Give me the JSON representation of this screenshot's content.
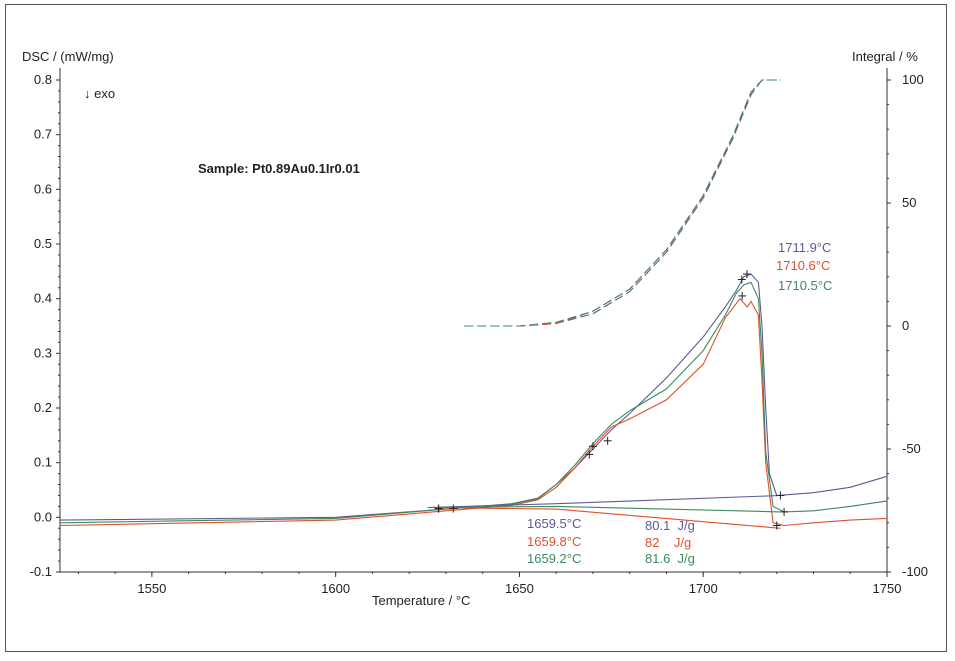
{
  "chart_data": {
    "type": "line",
    "y_axis_left": {
      "label": "DSC / (mW/mg)",
      "range": [
        -0.1,
        0.8
      ],
      "ticks": [
        "-0.1",
        "0.0",
        "0.1",
        "0.2",
        "0.3",
        "0.4",
        "0.5",
        "0.6",
        "0.7",
        "0.8"
      ]
    },
    "y_axis_right": {
      "label": "Integral / %",
      "range": [
        -100,
        100
      ],
      "ticks": [
        "-100",
        "-50",
        "0",
        "50",
        "100"
      ]
    },
    "x_axis": {
      "label": "Temperature / °C",
      "range": [
        1525,
        1750
      ],
      "ticks": [
        "1550",
        "1600",
        "1650",
        "1700",
        "1750"
      ]
    },
    "exo_label": "↓ exo",
    "sample_label": "Sample: Pt0.89Au0.1Ir0.01",
    "colors": {
      "blue": "#5a5a96",
      "red": "#e0502a",
      "green": "#3d8a5e"
    },
    "peak_labels": [
      {
        "text": "1711.9°C",
        "color": "blue"
      },
      {
        "text": "1710.6°C",
        "color": "red"
      },
      {
        "text": "1710.5°C",
        "color": "green"
      }
    ],
    "onset_labels": [
      {
        "text": "1659.5°C",
        "color": "blue"
      },
      {
        "text": "1659.8°C",
        "color": "red"
      },
      {
        "text": "1659.2°C",
        "color": "green"
      }
    ],
    "enthalpy_labels": [
      {
        "text": "80.1  J/g",
        "color": "blue"
      },
      {
        "text": "82    J/g",
        "color": "red"
      },
      {
        "text": "81.6  J/g",
        "color": "green"
      }
    ],
    "series": [
      {
        "color": "blue",
        "axis": "left",
        "style": "solid",
        "points": [
          [
            1525,
            -0.005
          ],
          [
            1600,
            0.0
          ],
          [
            1630,
            0.015
          ],
          [
            1648,
            0.025
          ],
          [
            1655,
            0.035
          ],
          [
            1660,
            0.06
          ],
          [
            1665,
            0.09
          ],
          [
            1670,
            0.125
          ],
          [
            1675,
            0.16
          ],
          [
            1680,
            0.19
          ],
          [
            1690,
            0.255
          ],
          [
            1700,
            0.33
          ],
          [
            1706,
            0.385
          ],
          [
            1709,
            0.415
          ],
          [
            1711,
            0.44
          ],
          [
            1713,
            0.445
          ],
          [
            1715,
            0.43
          ],
          [
            1716,
            0.35
          ],
          [
            1717,
            0.2
          ],
          [
            1718,
            0.08
          ],
          [
            1720,
            0.04
          ],
          [
            1730,
            0.045
          ],
          [
            1740,
            0.055
          ],
          [
            1750,
            0.075
          ]
        ]
      },
      {
        "color": "red",
        "axis": "left",
        "style": "solid",
        "points": [
          [
            1525,
            -0.015
          ],
          [
            1600,
            -0.005
          ],
          [
            1630,
            0.012
          ],
          [
            1648,
            0.022
          ],
          [
            1655,
            0.032
          ],
          [
            1660,
            0.055
          ],
          [
            1665,
            0.09
          ],
          [
            1670,
            0.13
          ],
          [
            1675,
            0.165
          ],
          [
            1680,
            0.18
          ],
          [
            1690,
            0.215
          ],
          [
            1700,
            0.28
          ],
          [
            1706,
            0.365
          ],
          [
            1710,
            0.4
          ],
          [
            1712,
            0.385
          ],
          [
            1713,
            0.395
          ],
          [
            1715,
            0.37
          ],
          [
            1716,
            0.25
          ],
          [
            1717,
            0.1
          ],
          [
            1719,
            -0.01
          ],
          [
            1722,
            -0.015
          ],
          [
            1730,
            -0.01
          ],
          [
            1740,
            -0.005
          ],
          [
            1750,
            -0.002
          ]
        ]
      },
      {
        "color": "green",
        "axis": "left",
        "style": "solid",
        "points": [
          [
            1525,
            -0.01
          ],
          [
            1600,
            -0.002
          ],
          [
            1630,
            0.015
          ],
          [
            1648,
            0.024
          ],
          [
            1655,
            0.034
          ],
          [
            1660,
            0.06
          ],
          [
            1665,
            0.095
          ],
          [
            1670,
            0.135
          ],
          [
            1675,
            0.17
          ],
          [
            1680,
            0.195
          ],
          [
            1690,
            0.235
          ],
          [
            1700,
            0.305
          ],
          [
            1706,
            0.37
          ],
          [
            1709,
            0.41
          ],
          [
            1711,
            0.425
          ],
          [
            1713,
            0.43
          ],
          [
            1715,
            0.4
          ],
          [
            1716,
            0.3
          ],
          [
            1717,
            0.12
          ],
          [
            1719,
            0.02
          ],
          [
            1722,
            0.01
          ],
          [
            1730,
            0.012
          ],
          [
            1740,
            0.02
          ],
          [
            1750,
            0.03
          ]
        ]
      },
      {
        "color": "blue",
        "axis": "left",
        "style": "solid",
        "points": [
          [
            1625,
            0.018
          ],
          [
            1660,
            0.025
          ],
          [
            1721,
            0.04
          ]
        ]
      },
      {
        "color": "red",
        "axis": "left",
        "style": "solid",
        "points": [
          [
            1625,
            0.018
          ],
          [
            1660,
            0.015
          ],
          [
            1721,
            -0.02
          ]
        ]
      },
      {
        "color": "green",
        "axis": "left",
        "style": "solid",
        "points": [
          [
            1625,
            0.018
          ],
          [
            1660,
            0.02
          ],
          [
            1721,
            0.01
          ]
        ]
      },
      {
        "color": "blue",
        "axis": "right",
        "style": "dashed",
        "points": [
          [
            1635,
            0
          ],
          [
            1650,
            0
          ],
          [
            1660,
            1
          ],
          [
            1670,
            5
          ],
          [
            1680,
            14
          ],
          [
            1690,
            30
          ],
          [
            1700,
            52
          ],
          [
            1708,
            76
          ],
          [
            1713,
            94
          ],
          [
            1716,
            100
          ],
          [
            1721,
            100
          ]
        ]
      },
      {
        "color": "red",
        "axis": "right",
        "style": "dashed",
        "points": [
          [
            1635,
            0
          ],
          [
            1650,
            0
          ],
          [
            1660,
            1
          ],
          [
            1670,
            6
          ],
          [
            1680,
            15
          ],
          [
            1690,
            31
          ],
          [
            1700,
            53
          ],
          [
            1708,
            77
          ],
          [
            1713,
            95
          ],
          [
            1716,
            100
          ],
          [
            1721,
            100
          ]
        ]
      },
      {
        "color": "green",
        "axis": "right",
        "style": "dashed",
        "points": [
          [
            1635,
            0
          ],
          [
            1650,
            0
          ],
          [
            1660,
            1.5
          ],
          [
            1670,
            6
          ],
          [
            1680,
            15
          ],
          [
            1690,
            31
          ],
          [
            1700,
            53
          ],
          [
            1708,
            77
          ],
          [
            1713,
            95
          ],
          [
            1716,
            100
          ],
          [
            1721,
            100
          ]
        ]
      }
    ],
    "markers": [
      {
        "color": "blue",
        "points": [
          [
            1632,
            0.016
          ],
          [
            1674,
            0.14
          ],
          [
            1711.9,
            0.445
          ],
          [
            1721,
            0.04
          ]
        ]
      },
      {
        "color": "red",
        "points": [
          [
            1628,
            0.016
          ],
          [
            1669,
            0.115
          ],
          [
            1710.6,
            0.405
          ],
          [
            1720,
            -0.015
          ]
        ]
      },
      {
        "color": "green",
        "points": [
          [
            1628,
            0.016
          ],
          [
            1670,
            0.13
          ],
          [
            1710.5,
            0.435
          ],
          [
            1722,
            0.01
          ]
        ]
      }
    ]
  }
}
